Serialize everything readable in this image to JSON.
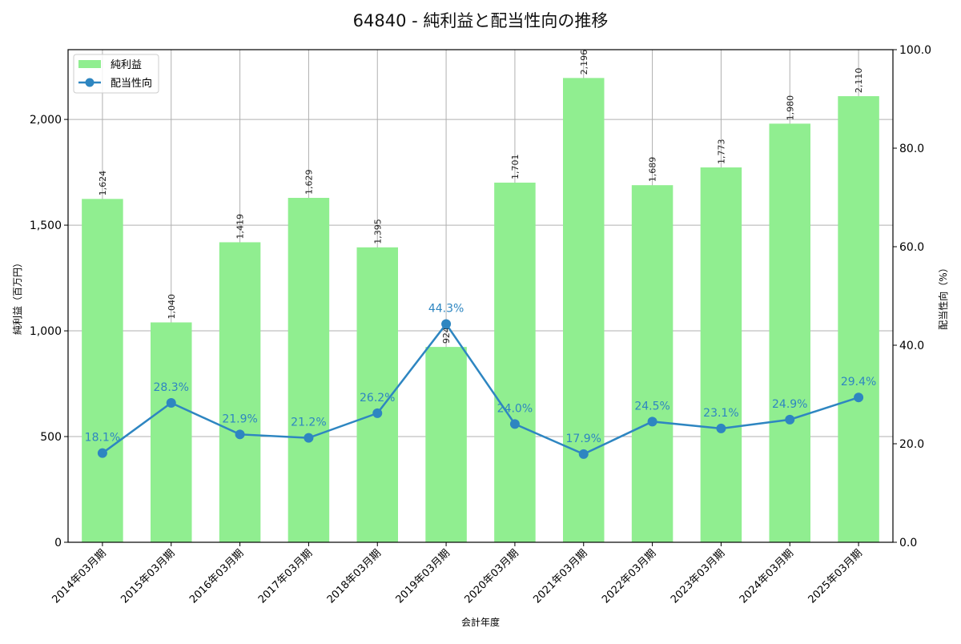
{
  "chart_data": {
    "type": "bar+line",
    "title": "64840 - 純利益と配当性向の推移",
    "xlabel": "会計年度",
    "ylabel_left": "純利益（百万円）",
    "ylabel_right": "配当性向（%）",
    "ylim_left": [
      0,
      2330
    ],
    "ylim_right": [
      0,
      100
    ],
    "yticks_left": [
      0,
      500,
      1000,
      1500,
      2000
    ],
    "yticks_left_labels": [
      "0",
      "500",
      "1,000",
      "1,500",
      "2,000"
    ],
    "yticks_right": [
      0,
      20,
      40,
      60,
      80,
      100
    ],
    "yticks_right_labels": [
      "0.0",
      "20.0",
      "40.0",
      "60.0",
      "80.0",
      "100.0"
    ],
    "grid": true,
    "legend_position": "upper left",
    "categories": [
      "2014年03月期",
      "2015年03月期",
      "2016年03月期",
      "2017年03月期",
      "2018年03月期",
      "2019年03月期",
      "2020年03月期",
      "2021年03月期",
      "2022年03月期",
      "2023年03月期",
      "2024年03月期",
      "2025年03月期"
    ],
    "series": [
      {
        "name": "純利益",
        "type": "bar",
        "axis": "left",
        "color": "#90ee90",
        "values": [
          1624,
          1040,
          1419,
          1629,
          1395,
          924,
          1701,
          2196,
          1689,
          1773,
          1980,
          2110
        ],
        "labels": [
          "1,624",
          "1,040",
          "1,419",
          "1,629",
          "1,395",
          "924",
          "1,701",
          "2,196",
          "1,689",
          "1,773",
          "1,980",
          "2,110"
        ]
      },
      {
        "name": "配当性向",
        "type": "line",
        "axis": "right",
        "color": "#2e86c1",
        "values": [
          18.1,
          28.3,
          21.9,
          21.2,
          26.2,
          44.3,
          24.0,
          17.9,
          24.5,
          23.1,
          24.9,
          29.4
        ],
        "labels": [
          "18.1%",
          "28.3%",
          "21.9%",
          "21.2%",
          "26.2%",
          "44.3%",
          "24.0%",
          "17.9%",
          "24.5%",
          "23.1%",
          "24.9%",
          "29.4%"
        ]
      }
    ]
  }
}
